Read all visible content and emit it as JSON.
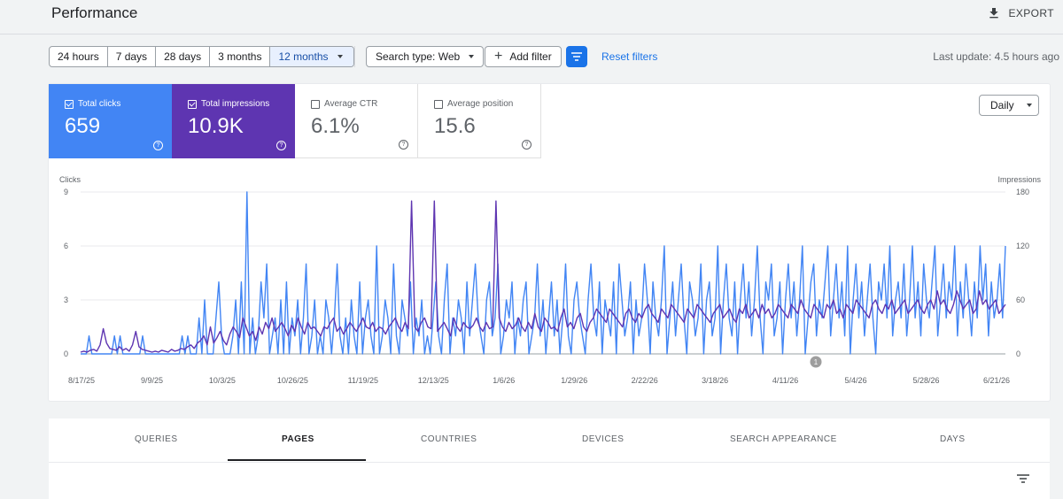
{
  "header": {
    "title": "Performance",
    "export_label": "EXPORT"
  },
  "filters": {
    "date_ranges": [
      "24 hours",
      "7 days",
      "28 days",
      "3 months",
      "12 months"
    ],
    "active_range": "12 months",
    "search_type": "Search type: Web",
    "add_filter": "Add filter",
    "reset": "Reset filters",
    "last_update": "Last update: 4.5 hours ago"
  },
  "metrics": {
    "clicks": {
      "label": "Total clicks",
      "value": "659",
      "checked": true,
      "color": "#4285f4"
    },
    "impressions": {
      "label": "Total impressions",
      "value": "10.9K",
      "checked": true,
      "color": "#5e35b1"
    },
    "ctr": {
      "label": "Average CTR",
      "value": "6.1%",
      "checked": false
    },
    "position": {
      "label": "Average position",
      "value": "15.6",
      "checked": false
    }
  },
  "granularity": "Daily",
  "chart_data": {
    "type": "line",
    "left_axis": {
      "label": "Clicks",
      "ticks": [
        0,
        3,
        6,
        9
      ],
      "ylim": [
        0,
        9
      ]
    },
    "right_axis": {
      "label": "Impressions",
      "ticks": [
        0,
        60,
        120,
        180
      ],
      "ylim": [
        0,
        180
      ]
    },
    "x_ticks": [
      "8/17/25",
      "9/9/25",
      "10/3/25",
      "10/26/25",
      "11/19/25",
      "12/13/25",
      "1/6/26",
      "1/29/26",
      "2/22/26",
      "3/18/26",
      "4/11/26",
      "5/4/26",
      "5/28/26",
      "6/21/26"
    ],
    "annotation": "1",
    "series": [
      {
        "name": "Clicks",
        "axis": "left",
        "color": "#4285f4",
        "values": [
          0,
          0,
          0,
          1,
          0,
          0,
          0,
          0,
          0,
          0,
          0,
          0,
          1,
          0,
          1,
          0,
          0,
          0,
          0,
          0,
          0,
          0,
          1,
          0,
          0,
          0,
          0,
          0,
          0,
          0,
          0,
          0,
          0,
          0,
          0,
          0,
          1,
          0,
          1,
          0,
          0,
          0,
          2,
          0,
          3,
          0,
          0,
          0,
          2,
          4,
          1,
          0,
          0,
          0,
          1,
          3,
          0,
          4,
          0,
          9,
          0,
          2,
          0,
          1,
          4,
          2,
          5,
          0,
          1,
          2,
          0,
          3,
          0,
          4,
          0,
          2,
          1,
          3,
          0,
          2,
          5,
          0,
          1,
          3,
          0,
          1,
          0,
          3,
          2,
          0,
          2,
          5,
          1,
          0,
          2,
          0,
          3,
          1,
          0,
          4,
          0,
          2,
          3,
          1,
          0,
          6,
          0,
          1,
          3,
          2,
          0,
          5,
          1,
          0,
          3,
          2,
          1,
          4,
          0,
          2,
          1,
          3,
          0,
          1,
          0,
          2,
          4,
          1,
          0,
          3,
          5,
          0,
          2,
          1,
          3,
          2,
          0,
          4,
          1,
          3,
          5,
          2,
          1,
          0,
          3,
          4,
          1,
          2,
          5,
          0,
          1,
          3,
          2,
          4,
          0,
          2,
          1,
          3,
          4,
          0,
          1,
          2,
          5,
          1,
          3,
          0,
          2,
          4,
          1,
          3,
          0,
          2,
          5,
          1,
          0,
          3,
          4,
          2,
          1,
          0,
          3,
          5,
          2,
          1,
          4,
          0,
          3,
          2,
          1,
          4,
          0,
          5,
          3,
          1,
          2,
          4,
          0,
          3,
          1,
          2,
          5,
          3,
          0,
          4,
          2,
          1,
          3,
          6,
          0,
          2,
          4,
          1,
          3,
          5,
          2,
          0,
          4,
          3,
          1,
          2,
          5,
          0,
          3,
          4,
          1,
          2,
          6,
          0,
          3,
          5,
          2,
          1,
          4,
          0,
          3,
          5,
          2,
          4,
          1,
          3,
          6,
          2,
          0,
          4,
          3,
          5,
          1,
          2,
          4,
          0,
          3,
          5,
          2,
          4,
          1,
          3,
          6,
          0,
          2,
          4,
          5,
          1,
          3,
          2,
          4,
          6,
          1,
          3,
          5,
          2,
          4,
          1,
          6,
          0,
          3,
          5,
          2,
          4,
          1,
          3,
          5,
          2,
          0,
          4,
          3,
          5,
          2,
          6,
          1,
          3,
          4,
          2,
          5,
          1,
          3,
          6,
          2,
          4,
          1,
          5,
          3,
          2,
          4,
          6,
          1,
          3,
          5,
          2,
          4,
          3,
          6,
          1,
          4,
          2,
          5,
          3,
          1,
          4,
          2,
          6,
          3,
          5,
          1,
          4,
          2,
          3,
          5,
          2,
          6
        ]
      },
      {
        "name": "Impressions",
        "axis": "right",
        "color": "#5e35b1",
        "values": [
          2,
          3,
          2,
          4,
          5,
          3,
          10,
          28,
          12,
          6,
          5,
          4,
          8,
          4,
          6,
          3,
          10,
          25,
          8,
          5,
          4,
          3,
          2,
          3,
          2,
          4,
          3,
          2,
          5,
          3,
          4,
          6,
          5,
          8,
          10,
          6,
          12,
          15,
          20,
          10,
          30,
          12,
          18,
          25,
          15,
          10,
          22,
          30,
          25,
          18,
          40,
          30,
          20,
          25,
          15,
          30,
          22,
          35,
          28,
          40,
          25,
          30,
          35,
          28,
          20,
          32,
          25,
          40,
          30,
          22,
          35,
          28,
          30,
          25,
          20,
          30,
          28,
          35,
          40,
          25,
          30,
          22,
          28,
          35,
          30,
          25,
          32,
          40,
          30,
          28,
          35,
          25,
          30,
          28,
          22,
          30,
          35,
          40,
          30,
          25,
          35,
          28,
          170,
          30,
          25,
          35,
          40,
          30,
          28,
          170,
          25,
          30,
          35,
          28,
          20,
          40,
          30,
          25,
          35,
          30,
          28,
          32,
          40,
          30,
          25,
          35,
          28,
          30,
          170,
          40,
          30,
          25,
          35,
          28,
          32,
          40,
          30,
          25,
          35,
          28,
          45,
          30,
          25,
          40,
          35,
          28,
          30,
          25,
          40,
          50,
          30,
          35,
          28,
          40,
          45,
          30,
          25,
          35,
          40,
          50,
          45,
          40,
          35,
          50,
          45,
          40,
          35,
          30,
          45,
          50,
          40,
          35,
          45,
          40,
          50,
          55,
          45,
          40,
          35,
          50,
          45,
          40,
          55,
          50,
          45,
          40,
          35,
          50,
          45,
          40,
          55,
          50,
          45,
          40,
          35,
          45,
          50,
          55,
          40,
          45,
          50,
          40,
          35,
          50,
          45,
          55,
          40,
          45,
          50,
          40,
          55,
          45,
          50,
          40,
          45,
          55,
          50,
          45,
          40,
          55,
          50,
          45,
          60,
          50,
          45,
          40,
          55,
          50,
          45,
          40,
          55,
          50,
          60,
          45,
          50,
          40,
          55,
          50,
          45,
          60,
          55,
          50,
          45,
          40,
          55,
          60,
          50,
          45,
          55,
          50,
          60,
          45,
          50,
          55,
          60,
          45,
          50,
          55,
          60,
          50,
          45,
          55,
          60,
          50,
          70,
          55,
          60,
          50,
          45,
          55,
          70,
          60,
          50,
          55,
          60,
          45,
          50,
          70,
          55,
          60,
          50,
          55,
          60,
          45,
          50,
          55
        ]
      }
    ]
  },
  "tabs": [
    "QUERIES",
    "PAGES",
    "COUNTRIES",
    "DEVICES",
    "SEARCH APPEARANCE",
    "DAYS"
  ],
  "active_tab": "PAGES"
}
